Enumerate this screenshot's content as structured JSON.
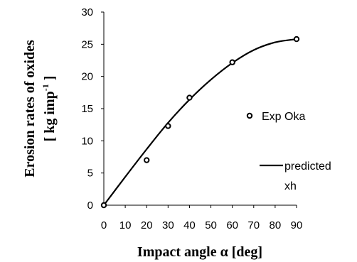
{
  "chart_data": {
    "type": "scatter",
    "xlabel": "Impact angle α [deg]",
    "ylabel_line1": "Erosion rates of oxides",
    "ylabel_line2_main": "[ kg imp",
    "ylabel_line2_sup": "-1",
    "ylabel_line2_end": " ]",
    "xlim": [
      0,
      90
    ],
    "ylim": [
      0,
      30
    ],
    "x_ticks": [
      0,
      10,
      20,
      30,
      40,
      50,
      60,
      70,
      80,
      90
    ],
    "y_ticks": [
      0,
      5,
      10,
      15,
      20,
      25,
      30
    ],
    "x_tick_labels": [
      "0",
      "10",
      "20",
      "30",
      "40",
      "50",
      "60",
      "70",
      "80",
      "90"
    ],
    "y_tick_labels": [
      "0",
      "5",
      "10",
      "15",
      "20",
      "25",
      "30"
    ],
    "grid": false,
    "legend_position": "right",
    "series": [
      {
        "name": "Exp Oka",
        "kind": "scatter",
        "marker": "open-circle",
        "color": "#000000",
        "points": [
          {
            "x": 0,
            "y": 0
          },
          {
            "x": 20,
            "y": 7.0
          },
          {
            "x": 30,
            "y": 12.3
          },
          {
            "x": 40,
            "y": 16.7
          },
          {
            "x": 60,
            "y": 22.2
          },
          {
            "x": 90,
            "y": 25.8
          }
        ]
      },
      {
        "name_line1": "predicted",
        "name_line2": "xh",
        "kind": "line",
        "color": "#000000",
        "points": [
          {
            "x": 0,
            "y": 0
          },
          {
            "x": 10,
            "y": 4.4
          },
          {
            "x": 20,
            "y": 8.7
          },
          {
            "x": 30,
            "y": 12.8
          },
          {
            "x": 40,
            "y": 16.4
          },
          {
            "x": 50,
            "y": 19.5
          },
          {
            "x": 60,
            "y": 22.1
          },
          {
            "x": 70,
            "y": 24.1
          },
          {
            "x": 80,
            "y": 25.3
          },
          {
            "x": 90,
            "y": 25.8
          }
        ]
      }
    ]
  }
}
